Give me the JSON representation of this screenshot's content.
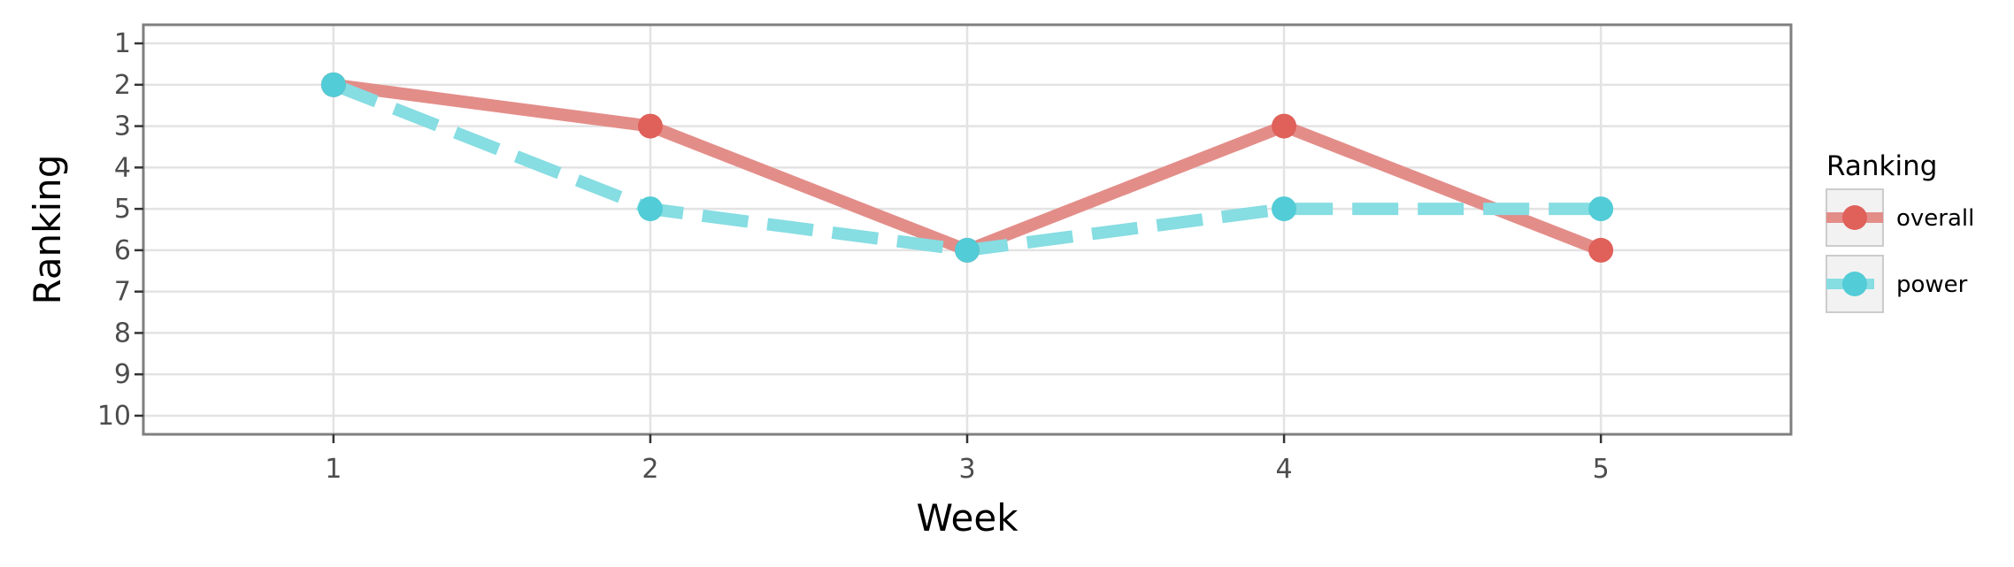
{
  "chart_data": {
    "type": "line",
    "xlabel": "Week",
    "ylabel": "Ranking",
    "x": [
      1,
      2,
      3,
      4,
      5
    ],
    "x_ticks": [
      "1",
      "2",
      "3",
      "4",
      "5"
    ],
    "y_ticks": [
      "1",
      "2",
      "3",
      "4",
      "5",
      "6",
      "7",
      "8",
      "9",
      "10"
    ],
    "xlim": [
      0.4,
      5.6
    ],
    "ylim": [
      10.45,
      0.55
    ],
    "y_reversed": true,
    "grid": true,
    "legend": {
      "title": "Ranking",
      "placement": "right",
      "entries": [
        "overall",
        "power"
      ]
    },
    "series": [
      {
        "name": "overall",
        "values": [
          2,
          3,
          6,
          3,
          6
        ],
        "color": "#e0605a",
        "line_color": "#e38d89",
        "line_style": "solid"
      },
      {
        "name": "power",
        "values": [
          2,
          5,
          6,
          5,
          5
        ],
        "color": "#52ccd6",
        "line_color": "#86dde2",
        "line_style": "dashed"
      }
    ]
  }
}
